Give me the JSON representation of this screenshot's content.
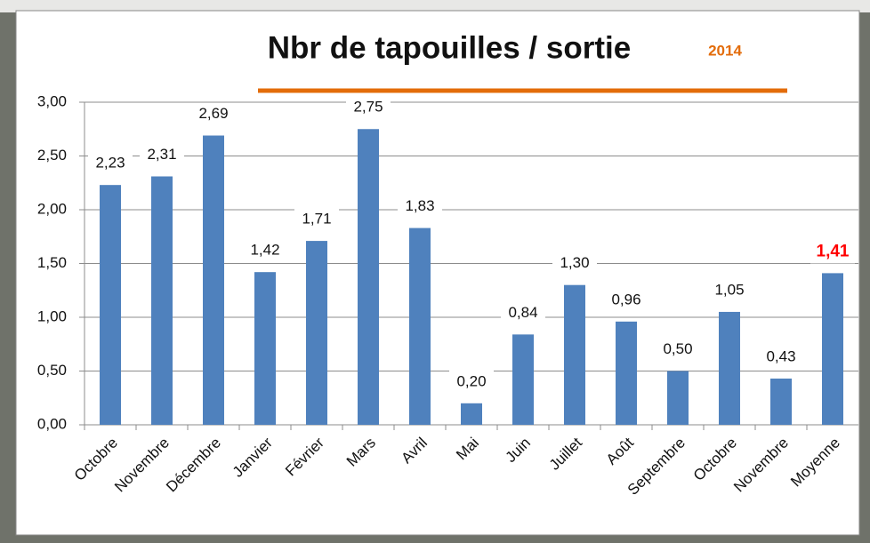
{
  "chart_data": {
    "type": "bar",
    "title": "Nbr de tapouilles / sortie",
    "subtitle": "2014",
    "categories": [
      "Octobre",
      "Novembre",
      "Décembre",
      "Janvier",
      "Février",
      "Mars",
      "Avril",
      "Mai",
      "Juin",
      "Juillet",
      "Août",
      "Septembre",
      "Octobre",
      "Novembre",
      "Moyenne"
    ],
    "values": [
      2.23,
      2.31,
      2.69,
      1.42,
      1.71,
      2.75,
      1.83,
      0.2,
      0.84,
      1.3,
      0.96,
      0.5,
      1.05,
      0.43,
      1.41
    ],
    "value_labels": [
      "2,23",
      "2,31",
      "2,69",
      "1,42",
      "1,71",
      "2,75",
      "1,83",
      "0,20",
      "0,84",
      "1,30",
      "0,96",
      "0,50",
      "1,05",
      "0,43",
      "1,41"
    ],
    "color": "#4f81bd",
    "highlight_index": 14,
    "highlight_color": "#ff0000",
    "ylim": [
      0,
      3
    ],
    "yticks": [
      {
        "value": 0,
        "label": "0,00"
      },
      {
        "value": 0.5,
        "label": "0,50"
      },
      {
        "value": 1,
        "label": "1,00"
      },
      {
        "value": 1.5,
        "label": "1,50"
      },
      {
        "value": 2,
        "label": "2,00"
      },
      {
        "value": 2.5,
        "label": "2,50"
      },
      {
        "value": 3,
        "label": "3,00"
      }
    ],
    "grid": true
  }
}
